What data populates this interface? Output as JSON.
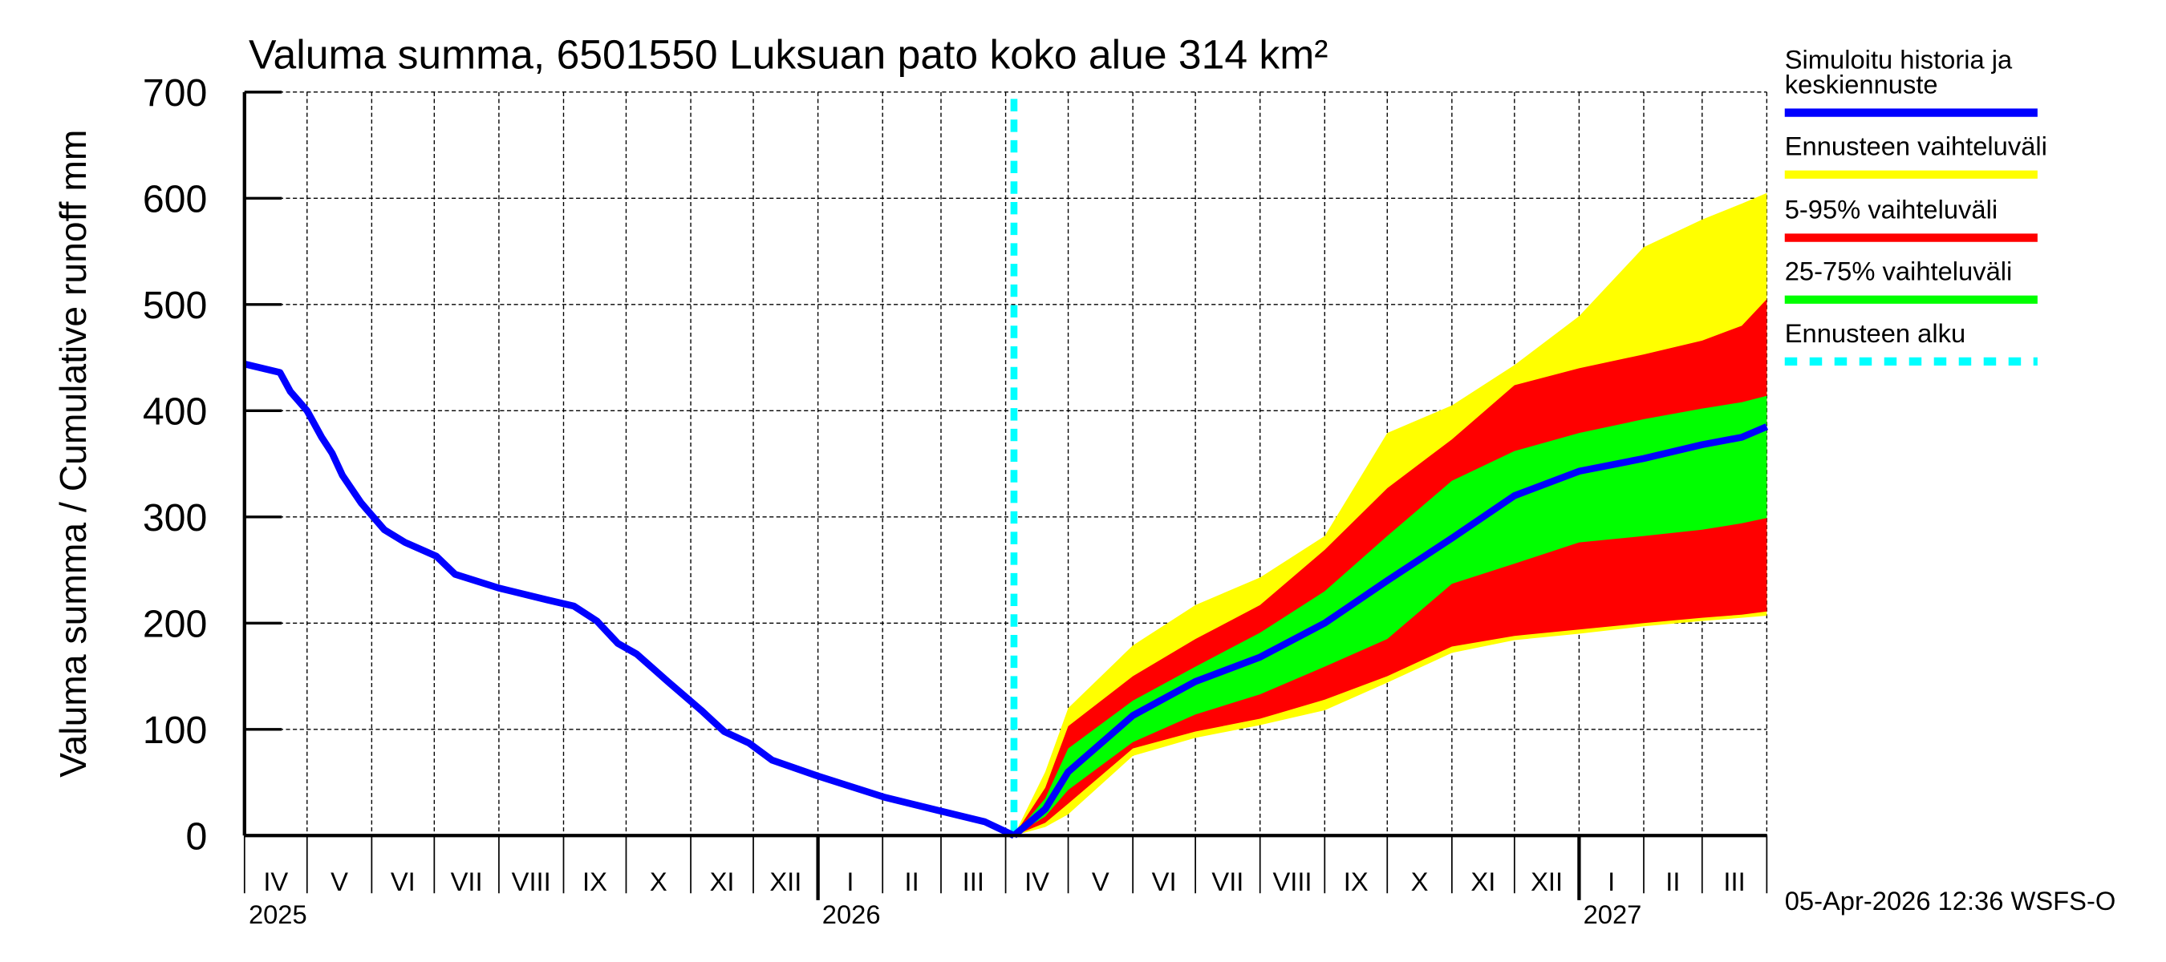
{
  "chart_data": {
    "type": "area",
    "title": "Valuma summa, 6501550 Luksuan pato koko alue 314 km²",
    "ylabel": "Valuma summa / Cumulative runoff    mm",
    "ylim": [
      0,
      700
    ],
    "yticks": [
      0,
      100,
      200,
      300,
      400,
      500,
      600,
      700
    ],
    "xlim": [
      "2025-04-01",
      "2027-04-01"
    ],
    "grid": true,
    "legend_position": "right",
    "month_labels": [
      "IV",
      "V",
      "VI",
      "VII",
      "VIII",
      "IX",
      "X",
      "XI",
      "XII",
      "I",
      "II",
      "III",
      "IV",
      "V",
      "VI",
      "VII",
      "VIII",
      "IX",
      "X",
      "XI",
      "XII",
      "I",
      "II",
      "III"
    ],
    "year_labels": [
      {
        "label": "2025",
        "date": "2025-04-01"
      },
      {
        "label": "2026",
        "date": "2026-01-01"
      },
      {
        "label": "2027",
        "date": "2027-01-01"
      }
    ],
    "forecast_start": "2026-04-05",
    "history": {
      "dates": [
        "2025-04-01",
        "2025-04-18",
        "2025-04-23",
        "2025-05-01",
        "2025-05-08",
        "2025-05-13",
        "2025-05-18",
        "2025-05-27",
        "2025-06-07",
        "2025-06-17",
        "2025-07-02",
        "2025-07-11",
        "2025-08-01",
        "2025-08-24",
        "2025-09-06",
        "2025-09-17",
        "2025-09-27",
        "2025-10-06",
        "2025-10-21",
        "2025-11-06",
        "2025-11-17",
        "2025-11-29",
        "2025-12-10",
        "2026-01-01",
        "2026-02-02",
        "2026-03-01",
        "2026-03-22",
        "2026-04-05"
      ],
      "values": [
        444,
        436,
        418,
        400,
        375,
        360,
        339,
        313,
        288,
        276,
        263,
        246,
        233,
        222,
        216,
        202,
        181,
        171,
        145,
        118,
        98,
        87,
        71,
        56,
        36,
        23,
        13,
        0
      ]
    },
    "forecast": {
      "dates": [
        "2026-04-05",
        "2026-04-20",
        "2026-05-01",
        "2026-06-01",
        "2026-07-01",
        "2026-08-01",
        "2026-09-01",
        "2026-10-01",
        "2026-11-01",
        "2026-12-01",
        "2027-01-01",
        "2027-02-01",
        "2027-03-01",
        "2027-03-20",
        "2027-04-01"
      ],
      "median": [
        0,
        25,
        60,
        113,
        145,
        168,
        200,
        240,
        280,
        320,
        343,
        355,
        368,
        375,
        385
      ],
      "range_max": [
        0,
        60,
        120,
        179,
        217,
        243,
        282,
        379,
        405,
        443,
        489,
        554,
        580,
        595,
        605
      ],
      "range_min": [
        0,
        8,
        20,
        75,
        92,
        104,
        118,
        144,
        172,
        184,
        190,
        197,
        202,
        205,
        207
      ],
      "p95": [
        0,
        45,
        103,
        150,
        185,
        217,
        269,
        327,
        373,
        424,
        440,
        453,
        466,
        480,
        505
      ],
      "p5": [
        0,
        12,
        30,
        82,
        98,
        110,
        128,
        150,
        178,
        188,
        194,
        200,
        205,
        208,
        211
      ],
      "p75": [
        0,
        35,
        82,
        127,
        159,
        191,
        230,
        282,
        334,
        362,
        379,
        392,
        402,
        408,
        414
      ],
      "p25": [
        0,
        18,
        43,
        88,
        114,
        133,
        159,
        185,
        237,
        256,
        276,
        282,
        288,
        294,
        299
      ]
    },
    "legend": [
      {
        "label_lines": [
          "Simuloitu historia ja",
          "keskiennuste"
        ],
        "color": "#0000ff",
        "style": "solid"
      },
      {
        "label_lines": [
          "Ennusteen vaihteluväli"
        ],
        "color": "#ffff00",
        "style": "solid"
      },
      {
        "label_lines": [
          "5-95% vaihteluväli"
        ],
        "color": "#ff0000",
        "style": "solid"
      },
      {
        "label_lines": [
          "25-75% vaihteluväli"
        ],
        "color": "#00ff00",
        "style": "solid"
      },
      {
        "label_lines": [
          "Ennusteen alku"
        ],
        "color": "#00ffff",
        "style": "dashed"
      }
    ],
    "timestamp": "05-Apr-2026 12:36 WSFS-O"
  }
}
